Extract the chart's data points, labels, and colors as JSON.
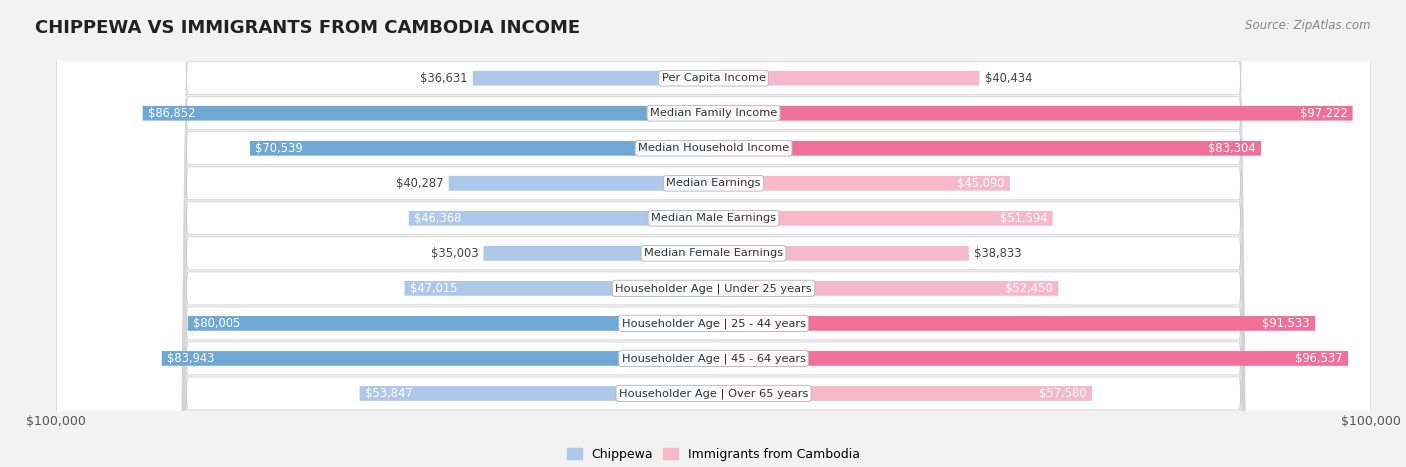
{
  "title": "CHIPPEWA VS IMMIGRANTS FROM CAMBODIA INCOME",
  "source": "Source: ZipAtlas.com",
  "categories": [
    "Per Capita Income",
    "Median Family Income",
    "Median Household Income",
    "Median Earnings",
    "Median Male Earnings",
    "Median Female Earnings",
    "Householder Age | Under 25 years",
    "Householder Age | 25 - 44 years",
    "Householder Age | 45 - 64 years",
    "Householder Age | Over 65 years"
  ],
  "chippewa_values": [
    36631,
    86852,
    70539,
    40287,
    46368,
    35003,
    47015,
    80005,
    83943,
    53847
  ],
  "cambodia_values": [
    40434,
    97222,
    83304,
    45090,
    51594,
    38833,
    52450,
    91533,
    96537,
    57580
  ],
  "chippewa_color_light": "#adc8e8",
  "chippewa_color_dark": "#6fa8d4",
  "cambodia_color_light": "#f7b8cc",
  "cambodia_color_dark": "#f07098",
  "chippewa_label": "Chippewa",
  "cambodia_label": "Immigrants from Cambodia",
  "max_value": 100000,
  "xlabel_left": "$100,000",
  "xlabel_right": "$100,000",
  "bg_color": "#f2f2f2",
  "row_bg_white": "#ffffff",
  "row_bg_gray": "#e8e8e8",
  "title_fontsize": 13,
  "value_fontsize": 8.5,
  "label_fontsize": 8.5,
  "inside_text_color": "#ffffff",
  "outside_text_color": "#555555",
  "inside_threshold": 0.42
}
